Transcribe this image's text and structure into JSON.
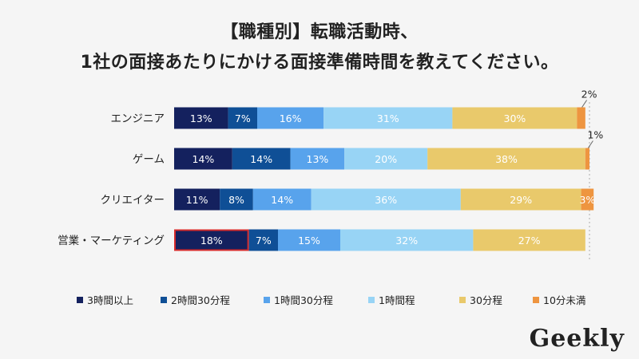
{
  "chart_data": {
    "type": "bar",
    "orientation": "horizontal",
    "stacked": true,
    "title_line1": "【職種別】転職活動時、",
    "title_line2": "1社の面接あたりにかける面接準備時間を教えてください。",
    "categories": [
      "エンジニア",
      "ゲーム",
      "クリエイター",
      "営業・マーケティング"
    ],
    "series": [
      {
        "name": "3時間以上",
        "color": "#14215e",
        "values": [
          13,
          14,
          11,
          18
        ]
      },
      {
        "name": "2時間30分程",
        "color": "#0f4f96",
        "values": [
          7,
          14,
          8,
          7
        ]
      },
      {
        "name": "1時間30分程",
        "color": "#58a3ec",
        "values": [
          16,
          13,
          14,
          15
        ]
      },
      {
        "name": "1時間程",
        "color": "#98d4f5",
        "values": [
          31,
          20,
          36,
          32
        ]
      },
      {
        "name": "30分程",
        "color": "#e9c96b",
        "values": [
          30,
          38,
          29,
          27
        ]
      },
      {
        "name": "10分未満",
        "color": "#ee9540",
        "values": [
          2,
          1,
          3,
          0
        ]
      }
    ],
    "data_labels": [
      [
        "13%",
        "7%",
        "16%",
        "31%",
        "30%",
        "2%"
      ],
      [
        "14%",
        "14%",
        "13%",
        "20%",
        "38%",
        "1%"
      ],
      [
        "11%",
        "8%",
        "14%",
        "36%",
        "29%",
        "3%"
      ],
      [
        "18%",
        "7%",
        "15%",
        "32%",
        "27%",
        ""
      ]
    ],
    "outside_labels": {
      "0": true,
      "1": true
    },
    "highlight": {
      "category_index": 3,
      "series_index": 0,
      "color": "#d62b2b"
    },
    "xlim": [
      0,
      100
    ],
    "legend_position": "bottom"
  },
  "logo_text": "Geekly"
}
